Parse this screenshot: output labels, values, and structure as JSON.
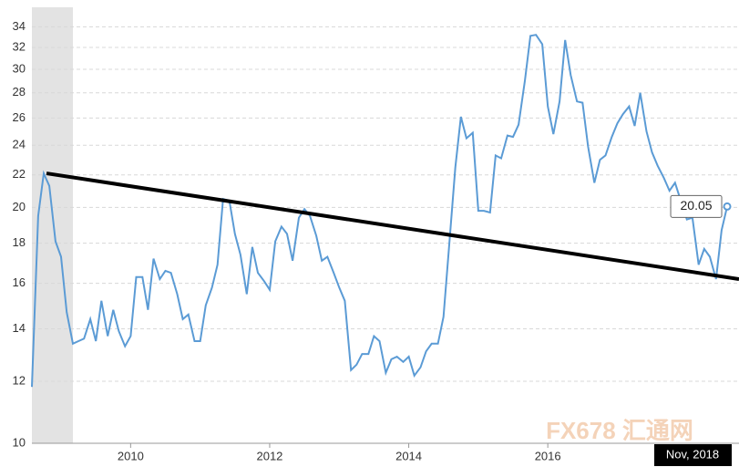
{
  "chart_data": {
    "type": "line",
    "log_scale": true,
    "grid": true,
    "x": [
      2008.58,
      2008.67,
      2008.75,
      2008.83,
      2008.92,
      2009.0,
      2009.08,
      2009.17,
      2009.25,
      2009.33,
      2009.42,
      2009.5,
      2009.58,
      2009.67,
      2009.75,
      2009.83,
      2009.92,
      2010.0,
      2010.08,
      2010.17,
      2010.25,
      2010.33,
      2010.42,
      2010.5,
      2010.58,
      2010.67,
      2010.75,
      2010.83,
      2010.92,
      2011.0,
      2011.08,
      2011.17,
      2011.25,
      2011.33,
      2011.42,
      2011.5,
      2011.58,
      2011.67,
      2011.75,
      2011.83,
      2011.92,
      2012.0,
      2012.08,
      2012.17,
      2012.25,
      2012.33,
      2012.42,
      2012.5,
      2012.58,
      2012.67,
      2012.75,
      2012.83,
      2012.92,
      2013.0,
      2013.08,
      2013.17,
      2013.25,
      2013.33,
      2013.42,
      2013.5,
      2013.58,
      2013.67,
      2013.75,
      2013.83,
      2013.92,
      2014.0,
      2014.08,
      2014.17,
      2014.25,
      2014.33,
      2014.42,
      2014.5,
      2014.58,
      2014.67,
      2014.75,
      2014.83,
      2014.92,
      2015.0,
      2015.08,
      2015.17,
      2015.25,
      2015.33,
      2015.42,
      2015.5,
      2015.58,
      2015.67,
      2015.75,
      2015.83,
      2015.92,
      2016.0,
      2016.08,
      2016.17,
      2016.25,
      2016.33,
      2016.42,
      2016.5,
      2016.58,
      2016.67,
      2016.75,
      2016.83,
      2016.92,
      2017.0,
      2017.08,
      2017.17,
      2017.25,
      2017.33,
      2017.42,
      2017.5,
      2017.58,
      2017.67,
      2017.75,
      2017.83,
      2017.92,
      2018.0,
      2018.08,
      2018.17,
      2018.25,
      2018.33,
      2018.42,
      2018.5,
      2018.58
    ],
    "series": [
      {
        "color": "#5b9bd5",
        "values": [
          11.8,
          19.5,
          22.1,
          21.3,
          18.1,
          17.3,
          14.7,
          13.4,
          13.5,
          13.6,
          14.4,
          13.5,
          15.2,
          13.7,
          14.8,
          13.9,
          13.3,
          13.7,
          16.3,
          16.3,
          14.8,
          17.2,
          16.2,
          16.6,
          16.5,
          15.5,
          14.4,
          14.6,
          13.5,
          13.5,
          15.0,
          15.8,
          16.9,
          20.5,
          20.4,
          18.5,
          17.4,
          15.5,
          17.8,
          16.5,
          16.1,
          15.7,
          18.1,
          18.9,
          18.5,
          17.1,
          19.4,
          19.9,
          19.5,
          18.4,
          17.1,
          17.3,
          16.5,
          15.8,
          15.2,
          12.4,
          12.6,
          13.0,
          13.0,
          13.7,
          13.5,
          12.3,
          12.8,
          12.9,
          12.7,
          12.9,
          12.2,
          12.5,
          13.1,
          13.4,
          13.4,
          14.5,
          17.8,
          22.5,
          26.1,
          24.5,
          24.9,
          19.8,
          19.8,
          19.7,
          23.3,
          23.1,
          24.7,
          24.6,
          25.5,
          29.0,
          33.1,
          33.2,
          32.3,
          26.9,
          24.8,
          27.3,
          32.7,
          29.5,
          27.3,
          27.2,
          23.9,
          21.5,
          23.0,
          23.3,
          24.6,
          25.6,
          26.3,
          26.9,
          25.4,
          28.0,
          25.0,
          23.5,
          22.6,
          21.8,
          21.0,
          21.5,
          20.3,
          19.3,
          19.4,
          16.9,
          17.7,
          17.3,
          16.2,
          18.7,
          20.05
        ]
      }
    ],
    "trendline": {
      "color": "#000000",
      "x": [
        2008.79,
        2018.75
      ],
      "values": [
        22.1,
        16.2
      ]
    },
    "shaded_band": {
      "color": "#e3e3e3",
      "x": [
        2008.58,
        2009.17
      ]
    },
    "xlim": [
      2008.58,
      2018.75
    ],
    "ylim": [
      10,
      36
    ],
    "xticks": [
      2010,
      2012,
      2014,
      2016
    ],
    "yticks": [
      10,
      12,
      14,
      16,
      18,
      20,
      22,
      24,
      26,
      28,
      30,
      32,
      34
    ],
    "date_label": "Nov, 2018",
    "watermark": "FX678 汇通网"
  }
}
